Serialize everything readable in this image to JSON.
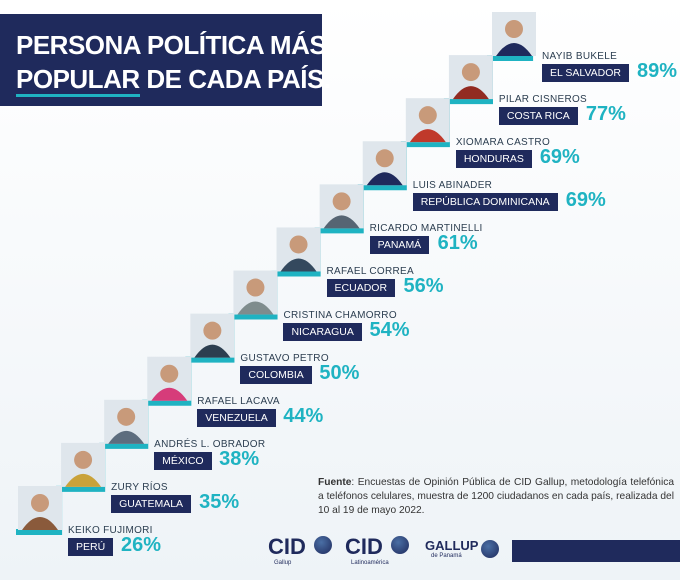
{
  "title": {
    "line1": "PERSONA POLÍTICA MÁS",
    "line2_underlined": "POPULAR",
    "line2_rest": " DE CADA PAÍS."
  },
  "colors": {
    "navy": "#1f2a5c",
    "teal": "#1fb3c2",
    "stair": "#1fb3c2"
  },
  "chart_data": {
    "type": "bar",
    "title": "PERSONA POLÍTICA MÁS POPULAR DE CADA PAÍS.",
    "categories": [
      "PERÚ",
      "GUATEMALA",
      "MÉXICO",
      "VENEZUELA",
      "COLOMBIA",
      "NICARAGUA",
      "ECUADOR",
      "PANAMÁ",
      "REPÚBLICA DOMINICANA",
      "HONDURAS",
      "COSTA RICA",
      "EL SALVADOR"
    ],
    "names": [
      "KEIKO FUJIMORI",
      "ZURY RÍOS",
      "ANDRÉS L. OBRADOR",
      "RAFAEL LACAVA",
      "GUSTAVO PETRO",
      "CRISTINA CHAMORRO",
      "RAFAEL CORREA",
      "RICARDO MARTINELLI",
      "LUIS ABINADER",
      "XIOMARA CASTRO",
      "PILAR CISNEROS",
      "NAYIB BUKELE"
    ],
    "values": [
      26,
      35,
      38,
      44,
      50,
      54,
      56,
      61,
      69,
      69,
      77,
      89
    ],
    "value_labels": [
      "26%",
      "35%",
      "38%",
      "44%",
      "50%",
      "54%",
      "56%",
      "61%",
      "69%",
      "69%",
      "77%",
      "89%"
    ]
  },
  "source": {
    "label": "Fuente",
    "text": ": Encuestas de Opinión Pública de CID Gallup, metodología telefónica a teléfonos celulares, muestra de 1200 ciudadanos en cada país, realizada del 10 al 19 de mayo 2022."
  },
  "logos": [
    {
      "name": "CID",
      "sub": "Gallup"
    },
    {
      "name": "CID",
      "sub": "Latinoamérica"
    },
    {
      "name": "GALLUP",
      "sub": "de Panamá"
    }
  ]
}
